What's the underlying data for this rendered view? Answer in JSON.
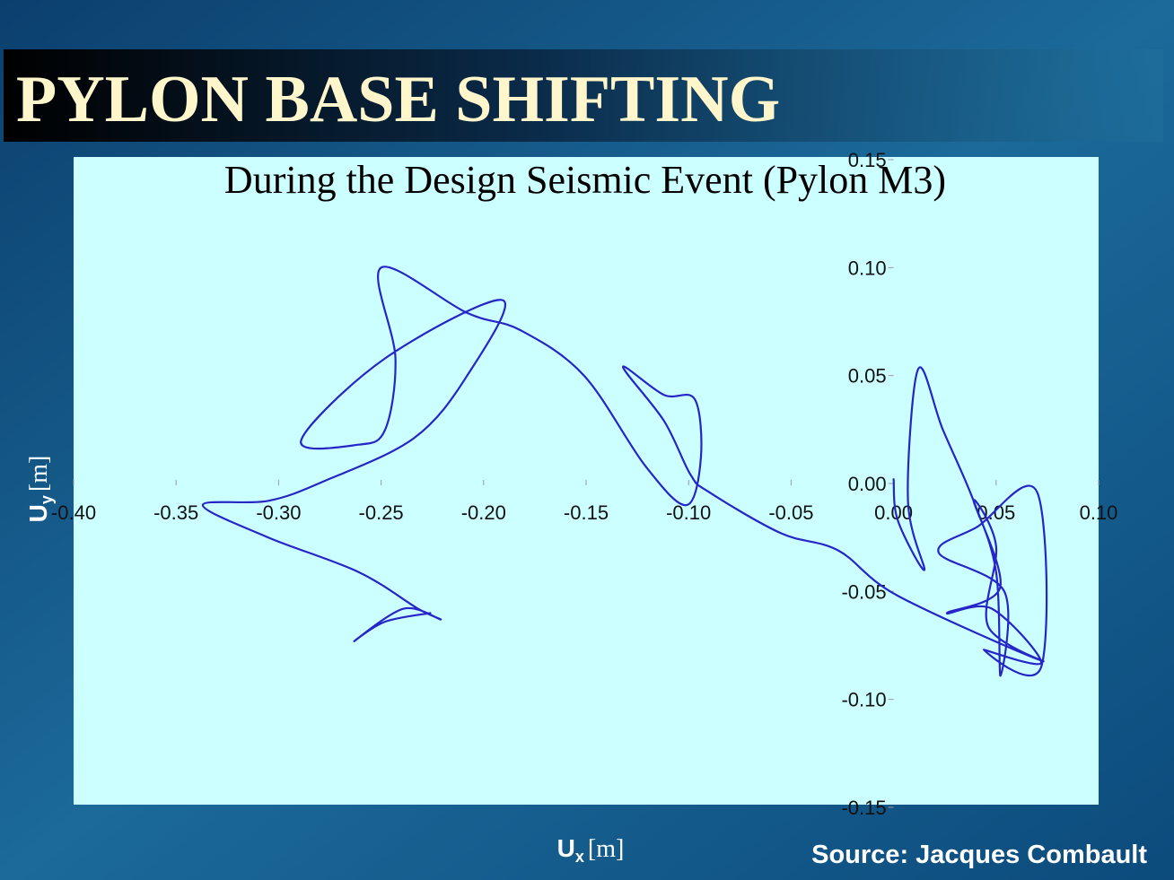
{
  "title": "PYLON BASE SHIFTING",
  "source": "Source: Jacques Combault",
  "chart_data": {
    "type": "line",
    "title": "During the Design Seismic Event (Pylon M3)",
    "x_label": {
      "symbol": "U",
      "subscript": "x",
      "unit": "[m]"
    },
    "y_label": {
      "symbol": "U",
      "subscript": "y",
      "unit": "[m]"
    },
    "xlim": [
      -0.4,
      0.1
    ],
    "ylim": [
      -0.15,
      0.15
    ],
    "xticks": [
      {
        "value": -0.4,
        "label": "-0.40"
      },
      {
        "value": -0.35,
        "label": "-0.35"
      },
      {
        "value": -0.3,
        "label": "-0.30"
      },
      {
        "value": -0.25,
        "label": "-0.25"
      },
      {
        "value": -0.2,
        "label": "-0.20"
      },
      {
        "value": -0.15,
        "label": "-0.15"
      },
      {
        "value": -0.1,
        "label": "-0.10"
      },
      {
        "value": -0.05,
        "label": "-0.05"
      },
      {
        "value": 0,
        "label": "0.00"
      },
      {
        "value": 0.05,
        "label": "0.05"
      },
      {
        "value": 0.1,
        "label": "0.10"
      }
    ],
    "yticks": [
      {
        "value": 0.15,
        "label": "0.15"
      },
      {
        "value": 0.1,
        "label": "0.10"
      },
      {
        "value": 0.05,
        "label": "0.05"
      },
      {
        "value": 0,
        "label": "0.00"
      },
      {
        "value": -0.05,
        "label": "-0.05"
      },
      {
        "value": -0.1,
        "label": "-0.10"
      },
      {
        "value": -0.15,
        "label": "-0.15"
      }
    ],
    "x": [
      0.0,
      0.002,
      0.015,
      0.007,
      0.012,
      0.024,
      0.039,
      0.05,
      0.052,
      0.054,
      0.022,
      0.041,
      0.07,
      0.072,
      0.044,
      0.072,
      0.048,
      0.026,
      0.052,
      0.039,
      0.05,
      0.046,
      0.072,
      0.002,
      -0.027,
      -0.055,
      -0.09,
      -0.099,
      -0.112,
      -0.132,
      -0.112,
      -0.097,
      -0.094,
      -0.101,
      -0.121,
      -0.151,
      -0.182,
      -0.208,
      -0.25,
      -0.243,
      -0.248,
      -0.261,
      -0.289,
      -0.248,
      -0.191,
      -0.208,
      -0.234,
      -0.278,
      -0.305,
      -0.337,
      -0.305,
      -0.261,
      -0.232,
      -0.221,
      -0.239,
      -0.263,
      -0.248,
      -0.226
    ],
    "series": [
      {
        "color": "#2525c8",
        "values": [
          0.002,
          -0.017,
          -0.04,
          -0.008,
          0.053,
          0.025,
          -0.008,
          -0.041,
          -0.089,
          -0.05,
          -0.032,
          -0.02,
          -0.004,
          -0.085,
          -0.077,
          -0.083,
          -0.058,
          -0.06,
          -0.048,
          -0.008,
          -0.029,
          -0.066,
          -0.082,
          -0.052,
          -0.031,
          -0.023,
          -0.004,
          0.004,
          0.029,
          0.054,
          0.041,
          0.039,
          0.012,
          -0.01,
          0.008,
          0.05,
          0.071,
          0.079,
          0.1,
          0.058,
          0.025,
          0.018,
          0.02,
          0.058,
          0.085,
          0.05,
          0.021,
          0.001,
          -0.008,
          -0.01,
          -0.025,
          -0.041,
          -0.058,
          -0.063,
          -0.058,
          -0.073,
          -0.064,
          -0.06
        ]
      }
    ]
  }
}
